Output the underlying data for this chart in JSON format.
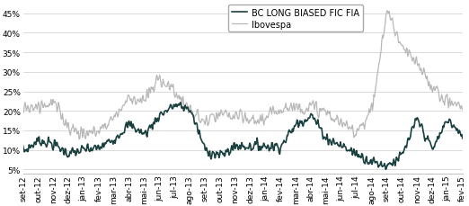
{
  "bc_color": "#1a4040",
  "ibov_color": "#b8b8b8",
  "bc_label": "BC LONG BIASED FIC FIA",
  "ibov_label": "Ibovespa",
  "yticks": [
    5,
    10,
    15,
    20,
    25,
    30,
    35,
    40,
    45
  ],
  "ylim": [
    4,
    48
  ],
  "xtick_labels": [
    "set-12",
    "out-12",
    "nov-12",
    "dez-12",
    "jan-13",
    "fev-13",
    "mar-13",
    "abr-13",
    "mai-13",
    "jun-13",
    "jul-13",
    "ago-13",
    "set-13",
    "out-13",
    "nov-13",
    "dez-13",
    "jan-14",
    "fev-14",
    "mar-14",
    "abr-14",
    "mai-14",
    "jun-14",
    "jul-14",
    "ago-14",
    "set-14",
    "out-14",
    "nov-14",
    "dez-14",
    "jan-15",
    "fev-15"
  ],
  "background_color": "#ffffff",
  "grid_color": "#cccccc",
  "legend_fontsize": 7,
  "tick_fontsize": 6.5,
  "bc_linewidth": 1.2,
  "ibov_linewidth": 0.9,
  "bc_anchors": [
    9.5,
    12.5,
    11.5,
    9.0,
    10.0,
    10.5,
    13.0,
    16.5,
    14.0,
    19.0,
    21.5,
    20.5,
    10.0,
    8.5,
    11.0,
    11.0,
    11.0,
    11.0,
    16.5,
    19.0,
    13.0,
    11.0,
    9.0,
    7.0,
    6.0,
    8.5,
    18.0,
    10.0,
    18.0,
    13.0
  ],
  "ibov_anchors": [
    21.0,
    21.5,
    22.0,
    16.0,
    14.0,
    15.0,
    18.5,
    23.5,
    22.5,
    28.5,
    25.0,
    20.0,
    17.0,
    19.0,
    18.5,
    17.5,
    18.0,
    21.0,
    21.0,
    21.0,
    19.5,
    16.5,
    15.0,
    20.0,
    46.0,
    36.0,
    32.0,
    26.0,
    22.5,
    21.0
  ]
}
